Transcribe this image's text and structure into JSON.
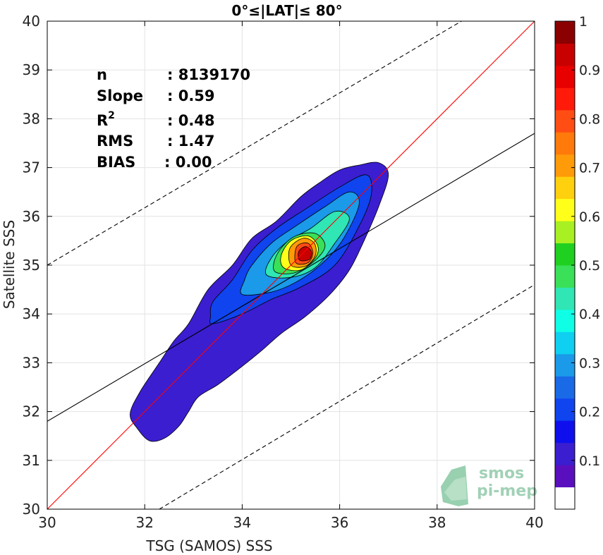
{
  "chart_data": {
    "type": "contour",
    "title": "0°≤|LAT|≤ 80°",
    "xlabel": "TSG (SAMOS) SSS",
    "ylabel": "Satellite SSS",
    "xlim": [
      30,
      40
    ],
    "ylim": [
      30,
      40
    ],
    "x_ticks": [
      "30",
      "32",
      "34",
      "36",
      "38",
      "40"
    ],
    "y_ticks": [
      "30",
      "31",
      "32",
      "33",
      "34",
      "35",
      "36",
      "37",
      "38",
      "39",
      "40"
    ],
    "grid": true,
    "stats": [
      {
        "label": "n",
        "sup": "",
        "value": ": 8139170"
      },
      {
        "label": "Slope",
        "sup": "",
        "value": ": 0.59"
      },
      {
        "label": "R",
        "sup": "2",
        "value": ": 0.48"
      },
      {
        "label": "RMS",
        "sup": "",
        "value": ": 1.47"
      },
      {
        "label": "BIAS",
        "sup": "",
        "value": ": 0.00"
      }
    ],
    "lines": {
      "identity": {
        "x": [
          30,
          40
        ],
        "y": [
          30,
          40
        ],
        "color": "#ff0000"
      },
      "fit": {
        "x": [
          30,
          40
        ],
        "y": [
          31.8,
          37.7
        ],
        "color": "#000000"
      },
      "upper_dashed": {
        "x": [
          30,
          38.5
        ],
        "y": [
          35,
          40
        ],
        "color": "#000000"
      },
      "lower_dashed": {
        "x": [
          32.3,
          40
        ],
        "y": [
          30,
          34.6
        ],
        "color": "#000000"
      }
    },
    "contours": [
      {
        "level": 0.05,
        "color": "#3a1ed0",
        "points": [
          [
            32.1,
            31.4
          ],
          [
            32.4,
            31.45
          ],
          [
            32.7,
            31.7
          ],
          [
            32.9,
            32.0
          ],
          [
            33.1,
            32.3
          ],
          [
            33.5,
            32.55
          ],
          [
            33.9,
            32.85
          ],
          [
            34.4,
            33.25
          ],
          [
            34.8,
            33.6
          ],
          [
            35.3,
            33.95
          ],
          [
            35.8,
            34.4
          ],
          [
            36.2,
            34.9
          ],
          [
            36.5,
            35.5
          ],
          [
            36.8,
            36.2
          ],
          [
            37.0,
            36.85
          ],
          [
            36.8,
            37.1
          ],
          [
            36.4,
            37.05
          ],
          [
            36.0,
            36.95
          ],
          [
            35.6,
            36.7
          ],
          [
            35.2,
            36.4
          ],
          [
            34.7,
            35.9
          ],
          [
            34.2,
            35.55
          ],
          [
            33.8,
            35.0
          ],
          [
            33.3,
            34.5
          ],
          [
            32.9,
            33.8
          ],
          [
            32.6,
            33.45
          ],
          [
            32.3,
            33.0
          ],
          [
            31.9,
            32.4
          ],
          [
            31.7,
            31.95
          ],
          [
            31.85,
            31.65
          ]
        ]
      },
      {
        "level": 0.2,
        "color": "#0f44ee",
        "points": [
          [
            33.4,
            33.8
          ],
          [
            34.0,
            34.0
          ],
          [
            34.6,
            34.3
          ],
          [
            35.2,
            34.55
          ],
          [
            35.9,
            35.0
          ],
          [
            36.4,
            35.8
          ],
          [
            36.65,
            36.45
          ],
          [
            36.55,
            36.85
          ],
          [
            36.0,
            36.6
          ],
          [
            35.3,
            36.15
          ],
          [
            34.7,
            35.75
          ],
          [
            34.2,
            35.3
          ],
          [
            33.8,
            34.7
          ],
          [
            33.4,
            34.25
          ],
          [
            33.35,
            33.95
          ]
        ]
      },
      {
        "level": 0.3,
        "color": "#1a9ae8",
        "points": [
          [
            34.0,
            34.4
          ],
          [
            34.6,
            34.45
          ],
          [
            35.1,
            34.65
          ],
          [
            35.6,
            35.0
          ],
          [
            36.05,
            35.5
          ],
          [
            36.4,
            36.25
          ],
          [
            36.2,
            36.5
          ],
          [
            35.7,
            36.2
          ],
          [
            35.1,
            35.8
          ],
          [
            34.6,
            35.45
          ],
          [
            34.2,
            35.0
          ],
          [
            34.05,
            34.7
          ]
        ]
      },
      {
        "level": 0.4,
        "color": "#2fe6b4",
        "points": [
          [
            34.5,
            34.8
          ],
          [
            35.0,
            34.75
          ],
          [
            35.5,
            34.95
          ],
          [
            35.9,
            35.45
          ],
          [
            36.2,
            35.95
          ],
          [
            35.9,
            36.1
          ],
          [
            35.4,
            35.75
          ],
          [
            34.95,
            35.5
          ],
          [
            34.6,
            35.15
          ]
        ]
      },
      {
        "level": 0.5,
        "color": "#39e058",
        "points": [
          [
            34.7,
            34.85
          ],
          [
            35.1,
            34.85
          ],
          [
            35.5,
            35.1
          ],
          [
            35.7,
            35.4
          ],
          [
            35.5,
            35.65
          ],
          [
            35.1,
            35.6
          ],
          [
            34.8,
            35.35
          ],
          [
            34.65,
            35.05
          ]
        ]
      },
      {
        "level": 0.6,
        "color": "#ffff1a",
        "points": [
          [
            34.85,
            34.95
          ],
          [
            35.2,
            34.9
          ],
          [
            35.5,
            35.15
          ],
          [
            35.55,
            35.4
          ],
          [
            35.35,
            35.6
          ],
          [
            35.0,
            35.5
          ],
          [
            34.8,
            35.2
          ]
        ]
      },
      {
        "level": 0.7,
        "color": "#ff9a08",
        "points": [
          [
            35.0,
            35.0
          ],
          [
            35.3,
            34.98
          ],
          [
            35.5,
            35.2
          ],
          [
            35.48,
            35.45
          ],
          [
            35.25,
            35.55
          ],
          [
            34.98,
            35.35
          ]
        ]
      },
      {
        "level": 0.8,
        "color": "#ff4d14",
        "points": [
          [
            35.1,
            35.05
          ],
          [
            35.35,
            35.05
          ],
          [
            35.45,
            35.25
          ],
          [
            35.35,
            35.45
          ],
          [
            35.12,
            35.38
          ]
        ]
      },
      {
        "level": 0.9,
        "color": "#c80000",
        "points": [
          [
            35.18,
            35.1
          ],
          [
            35.38,
            35.12
          ],
          [
            35.42,
            35.28
          ],
          [
            35.3,
            35.38
          ],
          [
            35.16,
            35.28
          ]
        ]
      }
    ],
    "colorbar": {
      "ticks": [
        "0.1",
        "0.2",
        "0.3",
        "0.4",
        "0.5",
        "0.6",
        "0.7",
        "0.8",
        "0.9",
        "1"
      ],
      "colors": [
        "#ffffff",
        "#5a0fbe",
        "#3a1ed0",
        "#0f0fee",
        "#0f44ee",
        "#1a6ae8",
        "#1a9ae8",
        "#0fd0f0",
        "#0fffe6",
        "#2fe6b4",
        "#39e058",
        "#20d020",
        "#a8f022",
        "#ffff1a",
        "#ffd00e",
        "#ff9a08",
        "#ff7a0a",
        "#ff4d14",
        "#ff1a0a",
        "#e80000",
        "#c80000",
        "#8b0000"
      ]
    },
    "logo": {
      "line1": "smos",
      "line2": "pi-mep",
      "color": "#8ac6a5"
    }
  }
}
